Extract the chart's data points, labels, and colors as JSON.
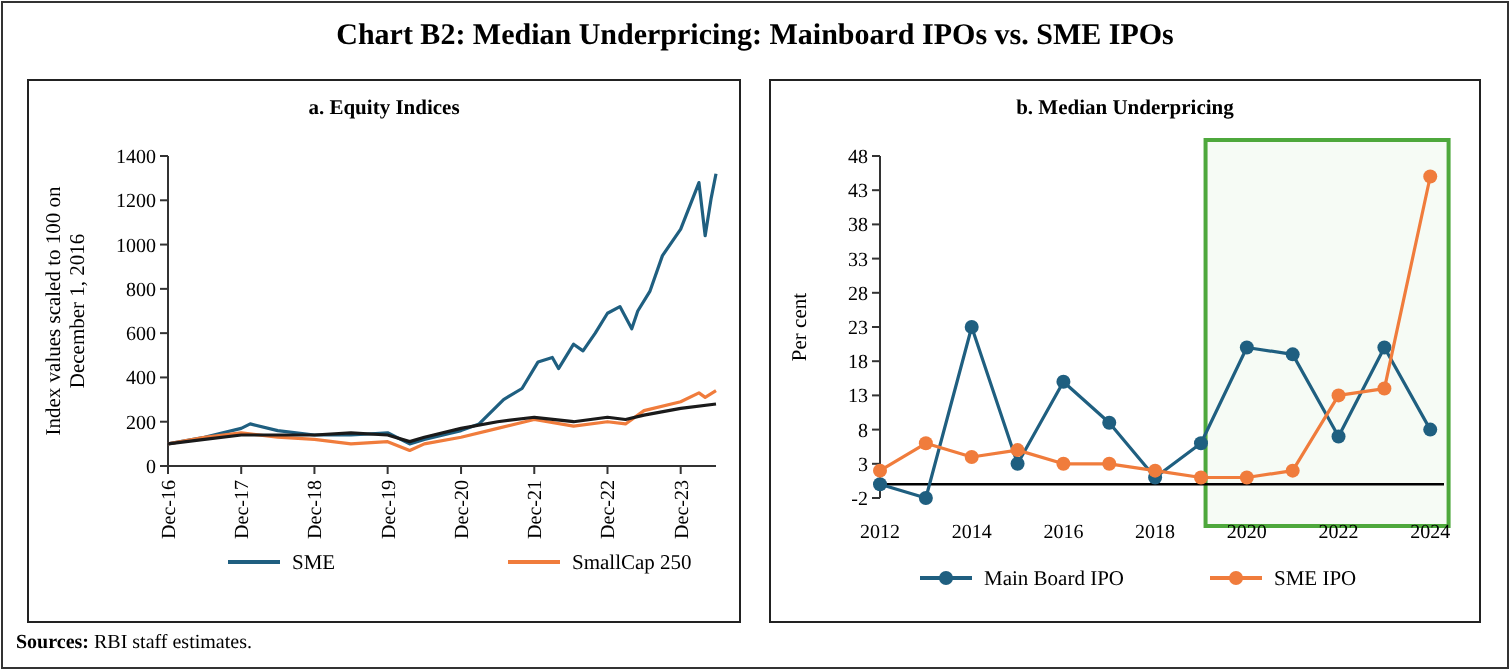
{
  "chart_data": [
    {
      "type": "other",
      "title": "Chart B2: Median Underpricing: Mainboard IPOs vs. SME IPOs",
      "annotations": [
        "Sources: RBI staff estimates."
      ]
    },
    {
      "type": "line",
      "title": "a. Equity Indices",
      "ylabel": "Index values scaled to 100 on December 1, 2016",
      "xlim": [
        "2016-12-01",
        "2024-05-25"
      ],
      "ylim": [
        0,
        1400
      ],
      "yticks": [
        0,
        200,
        400,
        600,
        800,
        1000,
        1200,
        1400
      ],
      "xticks": [
        {
          "value": "2016-12-01",
          "label": "Dec-16"
        },
        {
          "value": "2017-12-01",
          "label": "Dec-17"
        },
        {
          "value": "2018-12-01",
          "label": "Dec-18"
        },
        {
          "value": "2019-12-01",
          "label": "Dec-19"
        },
        {
          "value": "2020-12-01",
          "label": "Dec-20"
        },
        {
          "value": "2021-12-01",
          "label": "Dec-21"
        },
        {
          "value": "2022-12-01",
          "label": "Dec-22"
        },
        {
          "value": "2023-12-01",
          "label": "Dec-23"
        }
      ],
      "legend": "bottom",
      "series": [
        {
          "name": "SME",
          "color": "#1f5f80",
          "x": [
            "2016-12-01",
            "2017-06-01",
            "2017-12-01",
            "2018-01-15",
            "2018-06-01",
            "2018-12-01",
            "2019-06-01",
            "2019-12-01",
            "2020-03-20",
            "2020-06-01",
            "2020-12-01",
            "2021-03-01",
            "2021-07-01",
            "2021-10-01",
            "2021-12-20",
            "2022-03-01",
            "2022-04-01",
            "2022-06-15",
            "2022-08-01",
            "2022-10-01",
            "2022-12-01",
            "2023-02-01",
            "2023-04-01",
            "2023-05-01",
            "2023-07-01",
            "2023-09-01",
            "2023-12-01",
            "2024-03-01",
            "2024-04-01",
            "2024-05-01",
            "2024-05-25"
          ],
          "values": [
            100,
            130,
            170,
            190,
            160,
            140,
            140,
            150,
            100,
            120,
            160,
            190,
            300,
            350,
            470,
            490,
            440,
            550,
            520,
            600,
            690,
            720,
            620,
            700,
            790,
            950,
            1070,
            1280,
            1040,
            1210,
            1320
          ]
        },
        {
          "name": "SmallCap 250",
          "color": "#f07c3c",
          "x": [
            "2016-12-01",
            "2017-06-01",
            "2017-12-01",
            "2018-06-01",
            "2018-12-01",
            "2019-06-01",
            "2019-12-01",
            "2020-03-20",
            "2020-06-01",
            "2020-12-01",
            "2021-06-01",
            "2021-12-01",
            "2022-06-15",
            "2022-12-01",
            "2023-03-01",
            "2023-06-01",
            "2023-12-01",
            "2024-03-01",
            "2024-04-01",
            "2024-05-25"
          ],
          "values": [
            100,
            130,
            150,
            130,
            120,
            100,
            110,
            70,
            100,
            130,
            170,
            210,
            180,
            200,
            190,
            250,
            290,
            330,
            310,
            340
          ]
        },
        {
          "color": "#1a1a1a",
          "x": [
            "2016-12-01",
            "2017-06-01",
            "2017-12-01",
            "2018-06-01",
            "2018-12-01",
            "2019-06-01",
            "2019-12-01",
            "2020-03-20",
            "2020-06-01",
            "2020-12-01",
            "2021-06-01",
            "2021-12-01",
            "2022-06-15",
            "2022-12-01",
            "2023-03-01",
            "2023-06-01",
            "2023-12-01",
            "2024-05-25"
          ],
          "values": [
            100,
            120,
            140,
            140,
            140,
            150,
            140,
            110,
            130,
            170,
            200,
            220,
            200,
            220,
            210,
            230,
            260,
            280
          ]
        }
      ]
    },
    {
      "type": "line",
      "title": "b. Median Underpricing",
      "ylabel": "Per cent",
      "xlim": [
        2012,
        2024.3
      ],
      "xticks": [
        2012,
        2014,
        2016,
        2018,
        2020,
        2022,
        2024
      ],
      "ylim": [
        -2,
        48
      ],
      "yticks": [
        -2,
        3,
        8,
        13,
        18,
        23,
        28,
        33,
        38,
        43,
        48
      ],
      "marker": "circle",
      "legend": "bottom",
      "bands": [
        {
          "axis": "x",
          "from": 2019.1,
          "to": 2024.4,
          "color": "#4ea83c"
        }
      ],
      "x": [
        2012,
        2013,
        2014,
        2015,
        2016,
        2017,
        2018,
        2019,
        2020,
        2021,
        2022,
        2023,
        2024
      ],
      "series": [
        {
          "name": "Main Board IPO",
          "color": "#1f5f80",
          "values": [
            0,
            -2,
            23,
            3,
            15,
            9,
            1,
            6,
            20,
            19,
            7,
            20,
            8
          ]
        },
        {
          "name": "SME IPO",
          "color": "#f07c3c",
          "values": [
            2,
            6,
            4,
            5,
            3,
            3,
            2,
            1,
            1,
            2,
            13,
            14,
            45
          ]
        }
      ]
    }
  ]
}
